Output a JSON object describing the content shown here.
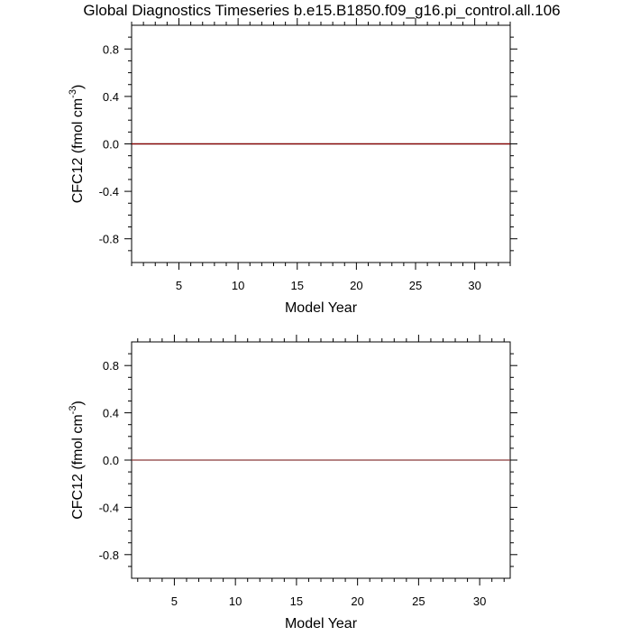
{
  "title": "Global Diagnostics Timeseries b.e15.B1850.f09_g16.pi_control.all.106",
  "chart_data": [
    {
      "type": "line",
      "xlabel": "Model Year",
      "ylabel": "CFC12 (fmol cm",
      "ylabel_sup": "-3",
      "ylabel_close": ")",
      "xlim": [
        1,
        33
      ],
      "ylim": [
        -1,
        1
      ],
      "xticks": [
        5,
        10,
        15,
        20,
        25,
        30
      ],
      "xtick_labels": [
        "5",
        "10",
        "15",
        "20",
        "25",
        "30"
      ],
      "yticks": [
        0.8,
        0.4,
        0.0,
        -0.4,
        -0.8
      ],
      "ytick_labels": [
        "0.8",
        "0.4",
        "0.0",
        "-0.4",
        "-0.8"
      ],
      "grid": false,
      "series": [
        {
          "color": "#000000",
          "x": [
            1,
            33
          ],
          "y": [
            0,
            0
          ]
        },
        {
          "color": "#8b0000",
          "x": [
            1,
            33
          ],
          "y": [
            0,
            0
          ]
        }
      ]
    },
    {
      "type": "line",
      "xlabel": "Model Year",
      "ylabel": "CFC12 (fmol cm",
      "ylabel_sup": "-3",
      "ylabel_close": ")",
      "xlim": [
        1.5,
        32.5
      ],
      "ylim": [
        -1,
        1
      ],
      "xticks": [
        5,
        10,
        15,
        20,
        25,
        30
      ],
      "xtick_labels": [
        "5",
        "10",
        "15",
        "20",
        "25",
        "30"
      ],
      "yticks": [
        0.8,
        0.4,
        0.0,
        -0.4,
        -0.8
      ],
      "ytick_labels": [
        "0.8",
        "0.4",
        "0.0",
        "-0.4",
        "-0.8"
      ],
      "grid": false,
      "series": [
        {
          "color": "#8b3a3a",
          "x": [
            1.5,
            32.5
          ],
          "y": [
            0,
            0
          ]
        }
      ]
    }
  ]
}
